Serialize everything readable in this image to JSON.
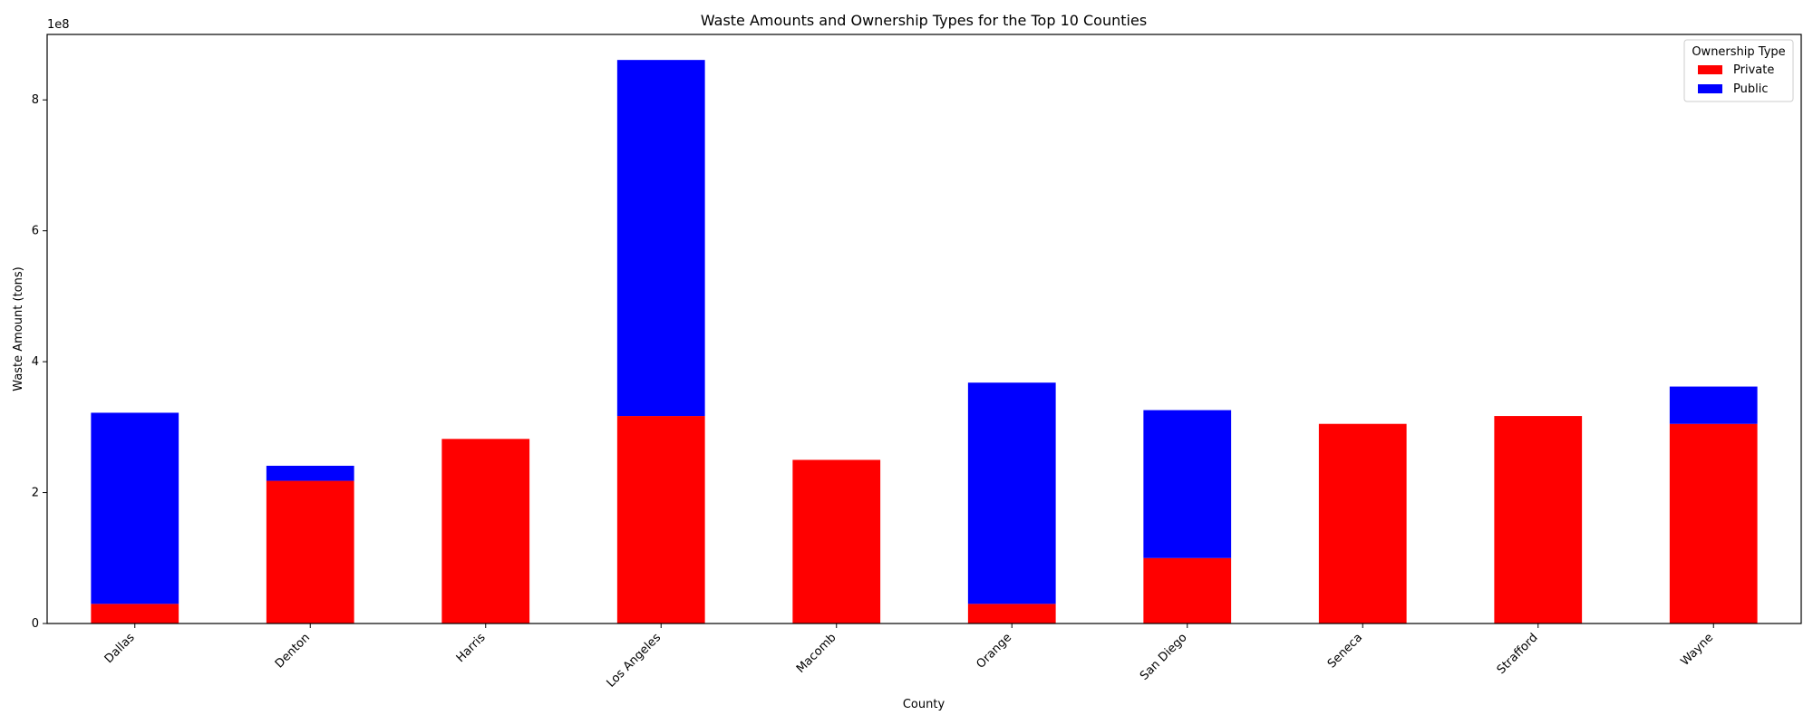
{
  "chart_data": {
    "type": "bar",
    "stacked": true,
    "title": "Waste Amounts and Ownership Types for the Top 10 Counties",
    "xlabel": "County",
    "ylabel": "Waste Amount (tons)",
    "y_scale_label": "1e8",
    "ylim": [
      0,
      900000000
    ],
    "yticks": [
      0,
      200000000,
      400000000,
      600000000,
      800000000
    ],
    "ytick_labels": [
      "0",
      "2",
      "4",
      "6",
      "8"
    ],
    "grid": false,
    "legend": {
      "title": "Ownership Type",
      "placement": "top-right"
    },
    "categories": [
      "Dallas",
      "Denton",
      "Harris",
      "Los Angeles",
      "Macomb",
      "Orange",
      "San Diego",
      "Seneca",
      "Strafford",
      "Wayne"
    ],
    "series": [
      {
        "name": "Private",
        "color": "#ff0000",
        "values": [
          30000000,
          218000000,
          282000000,
          317000000,
          250000000,
          30000000,
          100000000,
          305000000,
          317000000,
          305000000
        ]
      },
      {
        "name": "Public",
        "color": "#0000ff",
        "values": [
          292000000,
          23000000,
          0,
          544000000,
          0,
          338000000,
          226000000,
          0,
          0,
          57000000
        ]
      }
    ]
  }
}
